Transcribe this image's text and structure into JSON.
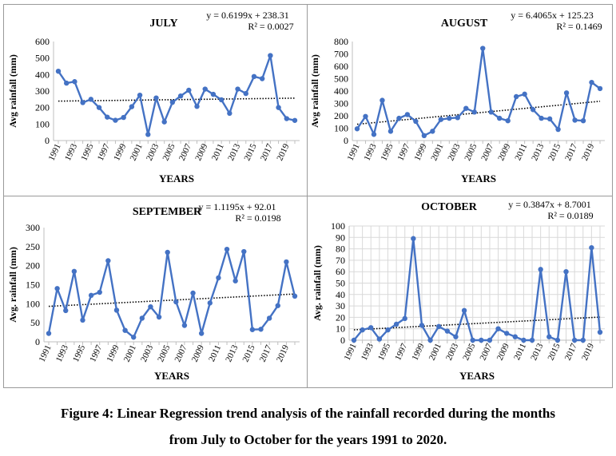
{
  "caption": {
    "line1": "Figure 4: Linear Regression trend analysis of the rainfall recorded during the months",
    "line2": "from July to October for the years 1991 to 2020."
  },
  "colors": {
    "series": "#4472c4",
    "trend": "#000000",
    "axis": "#bfbfbf"
  },
  "chart_data": [
    {
      "type": "line",
      "title": "JULY",
      "equation": "y = 0.6199x + 238.31",
      "r2": "R² = 0.0027",
      "xlabel": "YEARS",
      "ylabel": "Avg rainfall (mm)",
      "ylim": [
        0,
        600
      ],
      "yticks": [
        0,
        100,
        200,
        300,
        400,
        500,
        600
      ],
      "x": [
        1991,
        1992,
        1993,
        1994,
        1995,
        1996,
        1997,
        1998,
        1999,
        2000,
        2001,
        2002,
        2003,
        2004,
        2005,
        2006,
        2007,
        2008,
        2009,
        2010,
        2011,
        2012,
        2013,
        2014,
        2015,
        2016,
        2017,
        2018,
        2019,
        2020
      ],
      "values": [
        420,
        348,
        357,
        230,
        250,
        200,
        142,
        123,
        140,
        205,
        275,
        37,
        258,
        113,
        232,
        270,
        305,
        207,
        312,
        280,
        247,
        165,
        312,
        285,
        388,
        375,
        515,
        200,
        133,
        122
      ],
      "trend": {
        "slope": 0.6199,
        "intercept": 238.31
      },
      "xtick_labels": [
        "1991",
        "1993",
        "1995",
        "1997",
        "1999",
        "2001",
        "2003",
        "2005",
        "2007",
        "2009",
        "2011",
        "2013",
        "2015",
        "2017",
        "2019"
      ],
      "grid": false
    },
    {
      "type": "line",
      "title": "AUGUST",
      "equation": "y = 6.4065x + 125.23",
      "r2": "R² = 0.1469",
      "xlabel": "YEARS",
      "ylabel": "Avg rainfall (mm)",
      "ylim": [
        0,
        800
      ],
      "yticks": [
        0,
        100,
        200,
        300,
        400,
        500,
        600,
        700,
        800
      ],
      "x": [
        1991,
        1992,
        1993,
        1994,
        1995,
        1996,
        1997,
        1998,
        1999,
        2000,
        2001,
        2002,
        2003,
        2004,
        2005,
        2006,
        2007,
        2008,
        2009,
        2010,
        2011,
        2012,
        2013,
        2014,
        2015,
        2016,
        2017,
        2018,
        2019,
        2020
      ],
      "values": [
        95,
        195,
        50,
        325,
        75,
        180,
        210,
        155,
        40,
        75,
        170,
        180,
        185,
        260,
        230,
        745,
        230,
        180,
        160,
        355,
        375,
        250,
        180,
        175,
        90,
        385,
        165,
        160,
        470,
        420
      ],
      "trend": {
        "slope": 6.4065,
        "intercept": 125.23
      },
      "xtick_labels": [
        "1991",
        "1993",
        "1995",
        "1997",
        "1999",
        "2001",
        "2003",
        "2005",
        "2007",
        "2009",
        "2011",
        "2013",
        "2015",
        "2017",
        "2019"
      ],
      "grid": false
    },
    {
      "type": "line",
      "title": "SEPTEMBER",
      "equation": "y = 1.1195x + 92.01",
      "r2": "R² = 0.0198",
      "xlabel": "YEARS",
      "ylabel": "Avg. rainfall (mm)",
      "ylim": [
        0,
        300
      ],
      "yticks": [
        0,
        50,
        100,
        150,
        200,
        250,
        300
      ],
      "x": [
        1991,
        1992,
        1993,
        1994,
        1995,
        1996,
        1997,
        1998,
        1999,
        2000,
        2001,
        2002,
        2003,
        2004,
        2005,
        2006,
        2007,
        2008,
        2009,
        2010,
        2011,
        2012,
        2013,
        2014,
        2015,
        2016,
        2017,
        2018,
        2019,
        2020
      ],
      "values": [
        22,
        140,
        82,
        185,
        57,
        122,
        130,
        213,
        83,
        30,
        12,
        62,
        92,
        65,
        235,
        105,
        43,
        128,
        22,
        102,
        168,
        243,
        160,
        237,
        32,
        33,
        62,
        95,
        210,
        120
      ],
      "trend": {
        "slope": 1.1195,
        "intercept": 92.01
      },
      "xtick_labels": [
        "1991",
        "1993",
        "1995",
        "1997",
        "1999",
        "2001",
        "2003",
        "2005",
        "2007",
        "2009",
        "2011",
        "2013",
        "2015",
        "2017",
        "2019"
      ],
      "grid": false
    },
    {
      "type": "line",
      "title": "OCTOBER",
      "equation": "y = 0.3847x + 8.7001",
      "r2": "R² = 0.0189",
      "xlabel": "YEARS",
      "ylabel": "Avg. rainfall (mm)",
      "ylim": [
        0,
        100
      ],
      "yticks": [
        0,
        10,
        20,
        30,
        40,
        50,
        60,
        70,
        80,
        90,
        100
      ],
      "x": [
        1991,
        1992,
        1993,
        1994,
        1995,
        1996,
        1997,
        1998,
        1999,
        2000,
        2001,
        2002,
        2003,
        2004,
        2005,
        2006,
        2007,
        2008,
        2009,
        2010,
        2011,
        2012,
        2013,
        2014,
        2015,
        2016,
        2017,
        2018,
        2019,
        2020
      ],
      "values": [
        0,
        9,
        11,
        1,
        9,
        14,
        19,
        89,
        13,
        0,
        12,
        8,
        3,
        26,
        0,
        0,
        0,
        10,
        6,
        3,
        0,
        0,
        62,
        3,
        0,
        60,
        0,
        0,
        81,
        7
      ],
      "trend": {
        "slope": 0.3847,
        "intercept": 8.7001
      },
      "xtick_labels": [
        "1991",
        "1993",
        "1995",
        "1997",
        "1999",
        "2001",
        "2003",
        "2005",
        "2007",
        "2009",
        "2011",
        "2013",
        "2015",
        "2017",
        "2019"
      ],
      "grid": true
    }
  ]
}
